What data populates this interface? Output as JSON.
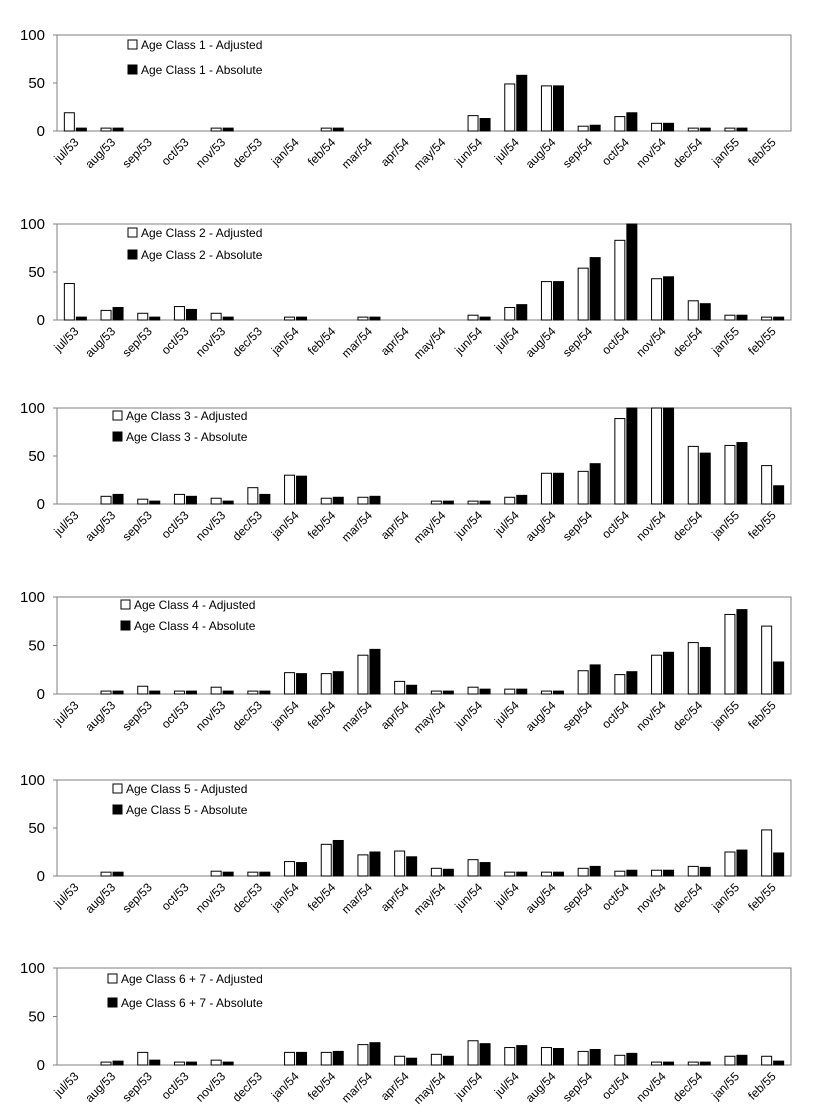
{
  "chart_data": [
    {
      "type": "bar",
      "ylim": [
        0,
        100
      ],
      "yticks": [
        "0",
        "50",
        "100"
      ],
      "legend_position": "top-left",
      "categories": [
        "jul/53",
        "aug/53",
        "sep/53",
        "oct/53",
        "nov/53",
        "dec/53",
        "jan/54",
        "feb/54",
        "mar/54",
        "apr/54",
        "may/54",
        "jun/54",
        "jul/54",
        "aug/54",
        "sep/54",
        "oct/54",
        "nov/54",
        "dec/54",
        "jan/55",
        "feb/55"
      ],
      "series": [
        {
          "name": "Age Class 1 - Adjusted",
          "color": "#ffffff",
          "values": [
            19,
            3,
            0,
            0,
            3,
            0,
            0,
            3,
            0,
            0,
            0,
            16,
            49,
            47,
            5,
            15,
            8,
            3,
            3,
            0
          ]
        },
        {
          "name": "Age Class 1 - Absolute",
          "color": "#000000",
          "values": [
            3,
            3,
            0,
            0,
            3,
            0,
            0,
            3,
            0,
            0,
            0,
            13,
            58,
            47,
            6,
            19,
            8,
            3,
            3,
            0
          ]
        }
      ]
    },
    {
      "type": "bar",
      "ylim": [
        0,
        100
      ],
      "yticks": [
        "0",
        "50",
        "100"
      ],
      "legend_position": "top-left",
      "categories": [
        "jul/53",
        "aug/53",
        "sep/53",
        "oct/53",
        "nov/53",
        "dec/53",
        "jan/54",
        "feb/54",
        "mar/54",
        "apr/54",
        "may/54",
        "jun/54",
        "jul/54",
        "aug/54",
        "sep/54",
        "oct/54",
        "nov/54",
        "dec/54",
        "jan/55",
        "feb/55"
      ],
      "series": [
        {
          "name": "Age Class 2 - Adjusted",
          "color": "#ffffff",
          "values": [
            38,
            10,
            7,
            14,
            7,
            0,
            3,
            0,
            3,
            0,
            0,
            5,
            13,
            40,
            54,
            83,
            43,
            20,
            5,
            3
          ]
        },
        {
          "name": "Age Class 2 - Absolute",
          "color": "#000000",
          "values": [
            3,
            13,
            3,
            11,
            3,
            0,
            3,
            0,
            3,
            0,
            0,
            3,
            16,
            40,
            65,
            100,
            45,
            17,
            5,
            3
          ]
        }
      ]
    },
    {
      "type": "bar",
      "ylim": [
        0,
        100
      ],
      "yticks": [
        "0",
        "50",
        "100"
      ],
      "legend_position": "top-left",
      "categories": [
        "jul/53",
        "aug/53",
        "sep/53",
        "oct/53",
        "nov/53",
        "dec/53",
        "jan/54",
        "feb/54",
        "mar/54",
        "apr/54",
        "may/54",
        "jun/54",
        "jul/54",
        "aug/54",
        "sep/54",
        "oct/54",
        "nov/54",
        "dec/54",
        "jan/55",
        "feb/55"
      ],
      "series": [
        {
          "name": "Age Class 3 - Adjusted",
          "color": "#ffffff",
          "values": [
            0,
            8,
            5,
            10,
            6,
            17,
            30,
            6,
            7,
            0,
            3,
            3,
            7,
            32,
            34,
            89,
            100,
            60,
            61,
            40
          ]
        },
        {
          "name": "Age Class 3 - Absolute",
          "color": "#000000",
          "values": [
            0,
            10,
            3,
            8,
            3,
            10,
            29,
            7,
            8,
            0,
            3,
            3,
            9,
            32,
            42,
            100,
            100,
            53,
            64,
            19
          ]
        }
      ]
    },
    {
      "type": "bar",
      "ylim": [
        0,
        100
      ],
      "yticks": [
        "0",
        "50",
        "100"
      ],
      "legend_position": "top-left",
      "categories": [
        "jul/53",
        "aug/53",
        "sep/53",
        "oct/53",
        "nov/53",
        "dec/53",
        "jan/54",
        "feb/54",
        "mar/54",
        "apr/54",
        "may/54",
        "jun/54",
        "jul/54",
        "aug/54",
        "sep/54",
        "oct/54",
        "nov/54",
        "dec/54",
        "jan/55",
        "feb/55"
      ],
      "series": [
        {
          "name": "Age Class 4 - Adjusted",
          "color": "#ffffff",
          "values": [
            0,
            3,
            8,
            3,
            7,
            3,
            22,
            21,
            40,
            13,
            3,
            7,
            5,
            3,
            24,
            20,
            40,
            53,
            82,
            70
          ]
        },
        {
          "name": "Age Class 4 - Absolute",
          "color": "#000000",
          "values": [
            0,
            3,
            3,
            3,
            3,
            3,
            21,
            23,
            46,
            9,
            3,
            5,
            5,
            3,
            30,
            23,
            43,
            48,
            87,
            33
          ]
        }
      ]
    },
    {
      "type": "bar",
      "ylim": [
        0,
        100
      ],
      "yticks": [
        "0",
        "50",
        "100"
      ],
      "legend_position": "top-left",
      "categories": [
        "jul/53",
        "aug/53",
        "sep/53",
        "oct/53",
        "nov/53",
        "dec/53",
        "jan/54",
        "feb/54",
        "mar/54",
        "apr/54",
        "may/54",
        "jun/54",
        "jul/54",
        "aug/54",
        "sep/54",
        "oct/54",
        "nov/54",
        "dec/54",
        "jan/55",
        "feb/55"
      ],
      "series": [
        {
          "name": "Age Class 5 - Adjusted",
          "color": "#ffffff",
          "values": [
            0,
            4,
            0,
            0,
            5,
            4,
            15,
            33,
            22,
            26,
            8,
            17,
            4,
            4,
            8,
            5,
            6,
            10,
            25,
            48
          ]
        },
        {
          "name": "Age Class 5 - Absolute",
          "color": "#000000",
          "values": [
            0,
            4,
            0,
            0,
            4,
            4,
            14,
            37,
            25,
            20,
            7,
            14,
            4,
            4,
            10,
            6,
            6,
            9,
            27,
            24
          ]
        }
      ]
    },
    {
      "type": "bar",
      "ylim": [
        0,
        100
      ],
      "yticks": [
        "0",
        "50",
        "100"
      ],
      "legend_position": "top-left",
      "categories": [
        "jul/53",
        "aug/53",
        "sep/53",
        "oct/53",
        "nov/53",
        "dec/53",
        "jan/54",
        "feb/54",
        "mar/54",
        "apr/54",
        "may/54",
        "jun/54",
        "jul/54",
        "aug/54",
        "sep/54",
        "oct/54",
        "nov/54",
        "dec/54",
        "jan/55",
        "feb/55"
      ],
      "series": [
        {
          "name": "Age Class 6 + 7 - Adjusted",
          "color": "#ffffff",
          "values": [
            0,
            3,
            13,
            3,
            5,
            0,
            13,
            13,
            21,
            9,
            11,
            25,
            18,
            18,
            14,
            10,
            3,
            3,
            9,
            9
          ]
        },
        {
          "name": "Age Class 6 + 7 - Absolute",
          "color": "#000000",
          "values": [
            0,
            4,
            5,
            3,
            3,
            0,
            13,
            14,
            23,
            7,
            9,
            22,
            20,
            17,
            16,
            12,
            3,
            3,
            10,
            4
          ]
        }
      ]
    }
  ]
}
